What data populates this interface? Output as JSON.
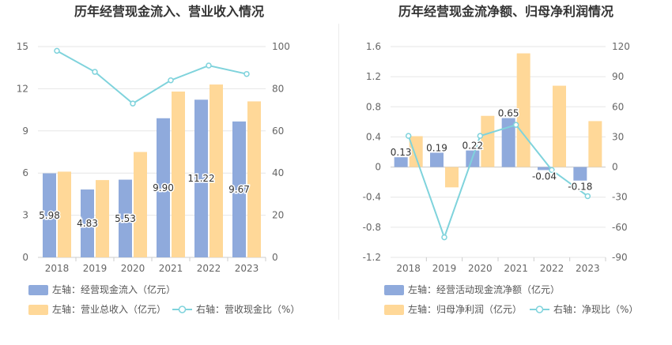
{
  "chart_data": [
    {
      "type": "bar",
      "title": "历年经营现金流入、营业收入情况",
      "categories": [
        "2018",
        "2019",
        "2020",
        "2021",
        "2022",
        "2023"
      ],
      "left_axis": {
        "ylim": [
          0,
          15
        ],
        "ticks": [
          "0",
          "3",
          "6",
          "9",
          "12",
          "15"
        ]
      },
      "right_axis": {
        "ylim": [
          0,
          100
        ],
        "ticks": [
          "0",
          "20",
          "40",
          "60",
          "80",
          "100"
        ]
      },
      "series": [
        {
          "name": "左轴：经营现金流入（亿元）",
          "type": "bar",
          "axis": "left",
          "color": "#8faadc",
          "values": [
            5.98,
            4.83,
            5.53,
            9.9,
            11.22,
            9.67
          ],
          "labels": [
            "5.98",
            "4.83",
            "5.53",
            "9.90",
            "11.22",
            "9.67"
          ]
        },
        {
          "name": "左轴：营业总收入（亿元）",
          "type": "bar",
          "axis": "left",
          "color": "#ffd898",
          "values": [
            6.1,
            5.5,
            7.5,
            11.8,
            12.3,
            11.1
          ]
        },
        {
          "name": "右轴：营收现金比（%）",
          "type": "line",
          "axis": "right",
          "color": "#7fd3dc",
          "values": [
            98,
            88,
            73,
            84,
            91,
            87
          ]
        }
      ]
    },
    {
      "type": "bar",
      "title": "历年经营现金流净额、归母净利润情况",
      "categories": [
        "2018",
        "2019",
        "2020",
        "2021",
        "2022",
        "2023"
      ],
      "left_axis": {
        "ylim": [
          -1.2,
          1.6
        ],
        "ticks": [
          "-1.2",
          "-0.8",
          "-0.4",
          "0",
          "0.4",
          "0.8",
          "1.2",
          "1.6"
        ]
      },
      "right_axis": {
        "ylim": [
          -90,
          120
        ],
        "ticks": [
          "-90",
          "-60",
          "-30",
          "0",
          "30",
          "60",
          "90",
          "120"
        ]
      },
      "series": [
        {
          "name": "左轴：经营活动现金流净额（亿元）",
          "type": "bar",
          "axis": "left",
          "color": "#8faadc",
          "values": [
            0.13,
            0.19,
            0.22,
            0.65,
            -0.04,
            -0.18
          ],
          "labels": [
            "0.13",
            "0.19",
            "0.22",
            "0.65",
            "-0.04",
            "-0.18"
          ]
        },
        {
          "name": "左轴：归母净利润（亿元）",
          "type": "bar",
          "axis": "left",
          "color": "#ffd898",
          "values": [
            0.41,
            -0.27,
            0.68,
            1.51,
            1.08,
            0.61
          ]
        },
        {
          "name": "右轴：净现比（%）",
          "type": "line",
          "axis": "right",
          "color": "#7fd3dc",
          "values": [
            31,
            -70,
            31,
            42,
            -3,
            -29
          ]
        }
      ]
    }
  ]
}
